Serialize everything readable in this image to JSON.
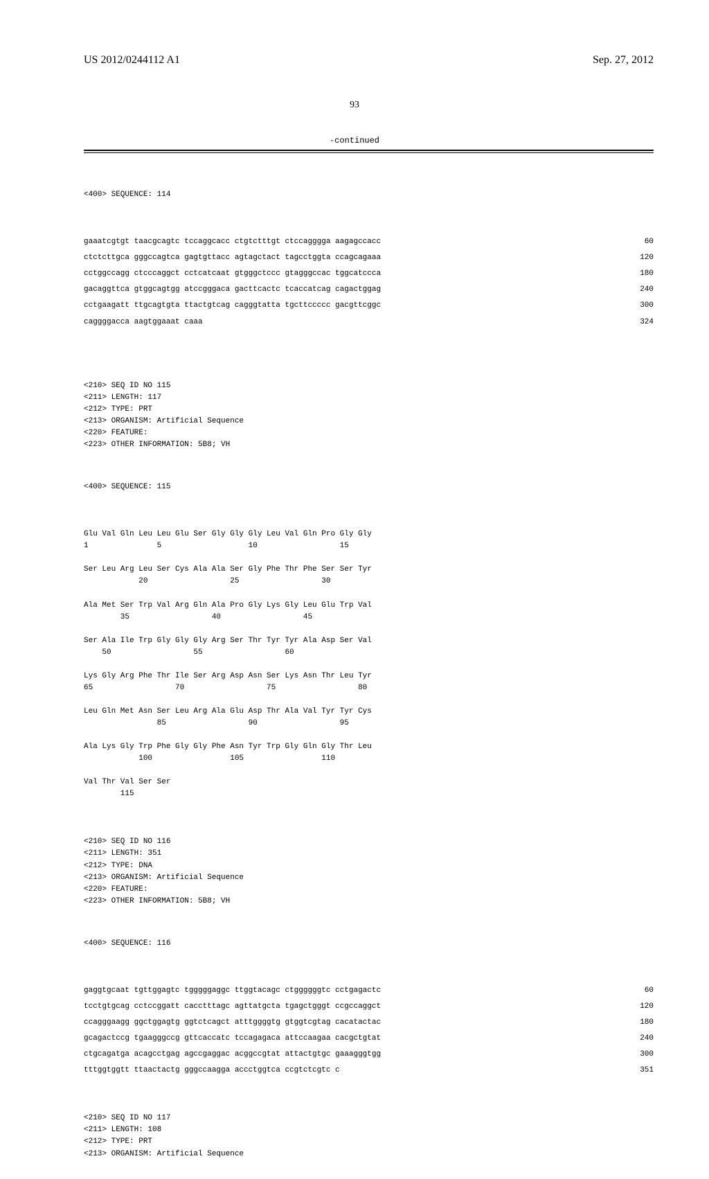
{
  "header": {
    "pub_number": "US 2012/0244112 A1",
    "pub_date": "Sep. 27, 2012",
    "page_number": "93",
    "continued": "-continued"
  },
  "seq114": {
    "header": "<400> SEQUENCE: 114",
    "lines": [
      {
        "text": "gaaatcgtgt taacgcagtc tccaggcacc ctgtctttgt ctccagggga aagagccacc",
        "num": "60"
      },
      {
        "text": "ctctcttgca gggccagtca gagtgttacc agtagctact tagcctggta ccagcagaaa",
        "num": "120"
      },
      {
        "text": "cctggccagg ctcccaggct cctcatcaat gtgggctccc gtagggccac tggcatccca",
        "num": "180"
      },
      {
        "text": "gacaggttca gtggcagtgg atccgggaca gacttcactc tcaccatcag cagactggag",
        "num": "240"
      },
      {
        "text": "cctgaagatt ttgcagtgta ttactgtcag cagggtatta tgcttccccc gacgttcggc",
        "num": "300"
      },
      {
        "text": "caggggacca aagtggaaat caaa",
        "num": "324"
      }
    ]
  },
  "seq115_meta": [
    "<210> SEQ ID NO 115",
    "<211> LENGTH: 117",
    "<212> TYPE: PRT",
    "<213> ORGANISM: Artificial Sequence",
    "<220> FEATURE:",
    "<223> OTHER INFORMATION: 5B8; VH"
  ],
  "seq115": {
    "header": "<400> SEQUENCE: 115",
    "protein": [
      "Glu Val Gln Leu Leu Glu Ser Gly Gly Gly Leu Val Gln Pro Gly Gly",
      "1               5                   10                  15",
      "",
      "Ser Leu Arg Leu Ser Cys Ala Ala Ser Gly Phe Thr Phe Ser Ser Tyr",
      "            20                  25                  30",
      "",
      "Ala Met Ser Trp Val Arg Gln Ala Pro Gly Lys Gly Leu Glu Trp Val",
      "        35                  40                  45",
      "",
      "Ser Ala Ile Trp Gly Gly Gly Arg Ser Thr Tyr Tyr Ala Asp Ser Val",
      "    50                  55                  60",
      "",
      "Lys Gly Arg Phe Thr Ile Ser Arg Asp Asn Ser Lys Asn Thr Leu Tyr",
      "65                  70                  75                  80",
      "",
      "Leu Gln Met Asn Ser Leu Arg Ala Glu Asp Thr Ala Val Tyr Tyr Cys",
      "                85                  90                  95",
      "",
      "Ala Lys Gly Trp Phe Gly Gly Phe Asn Tyr Trp Gly Gln Gly Thr Leu",
      "            100                 105                 110",
      "",
      "Val Thr Val Ser Ser",
      "        115"
    ]
  },
  "seq116_meta": [
    "<210> SEQ ID NO 116",
    "<211> LENGTH: 351",
    "<212> TYPE: DNA",
    "<213> ORGANISM: Artificial Sequence",
    "<220> FEATURE:",
    "<223> OTHER INFORMATION: 5B8; VH"
  ],
  "seq116": {
    "header": "<400> SEQUENCE: 116",
    "lines": [
      {
        "text": "gaggtgcaat tgttggagtc tgggggaggc ttggtacagc ctggggggtc cctgagactc",
        "num": "60"
      },
      {
        "text": "tcctgtgcag cctccggatt cacctttagc agttatgcta tgagctgggt ccgccaggct",
        "num": "120"
      },
      {
        "text": "ccagggaagg ggctggagtg ggtctcagct atttggggtg gtggtcgtag cacatactac",
        "num": "180"
      },
      {
        "text": "gcagactccg tgaagggccg gttcaccatc tccagagaca attccaagaa cacgctgtat",
        "num": "240"
      },
      {
        "text": "ctgcagatga acagcctgag agccgaggac acggccgtat attactgtgc gaaagggtgg",
        "num": "300"
      },
      {
        "text": "tttggtggtt ttaactactg gggccaagga accctggtca ccgtctcgtc c",
        "num": "351"
      }
    ]
  },
  "seq117_meta": [
    "<210> SEQ ID NO 117",
    "<211> LENGTH: 108",
    "<212> TYPE: PRT",
    "<213> ORGANISM: Artificial Sequence"
  ]
}
